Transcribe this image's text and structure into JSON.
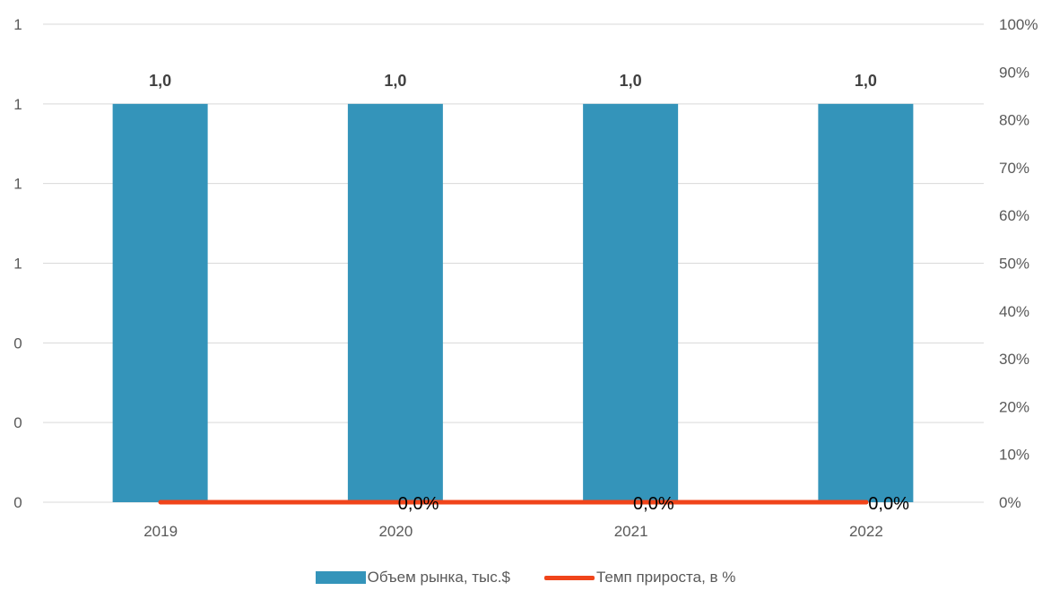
{
  "chart_data": {
    "type": "bar",
    "categories": [
      "2019",
      "2020",
      "2021",
      "2022"
    ],
    "series": [
      {
        "name": "Объем рынка, тыс.$",
        "kind": "bar",
        "axis": "left",
        "values": [
          1.0,
          1.0,
          1.0,
          1.0
        ],
        "data_labels": [
          "1,0",
          "1,0",
          "1,0",
          "1,0"
        ],
        "color": "#3494ba"
      },
      {
        "name": "Темп прироста, в %",
        "kind": "line",
        "axis": "right",
        "values": [
          0.0,
          0.0,
          0.0,
          0.0
        ],
        "data_labels": [
          "",
          "0,0%",
          "0,0%",
          "0,0%"
        ],
        "color": "#f0441a"
      }
    ],
    "left_axis": {
      "range": [
        0,
        1.2
      ],
      "ticks": [
        0,
        0.2,
        0.4,
        0.6,
        0.8,
        1.0,
        1.2
      ],
      "tick_labels": [
        "0",
        "0",
        "0",
        "1",
        "1",
        "1",
        "1"
      ]
    },
    "right_axis": {
      "range": [
        0,
        100
      ],
      "ticks": [
        0,
        10,
        20,
        30,
        40,
        50,
        60,
        70,
        80,
        90,
        100
      ],
      "tick_labels": [
        "0%",
        "10%",
        "20%",
        "30%",
        "40%",
        "50%",
        "60%",
        "70%",
        "80%",
        "90%",
        "100%"
      ]
    },
    "gridlines": true,
    "legend_position": "bottom"
  },
  "colors": {
    "bar": "#3494ba",
    "line": "#f0441a",
    "grid": "#d9d9d9",
    "text": "#595959"
  }
}
